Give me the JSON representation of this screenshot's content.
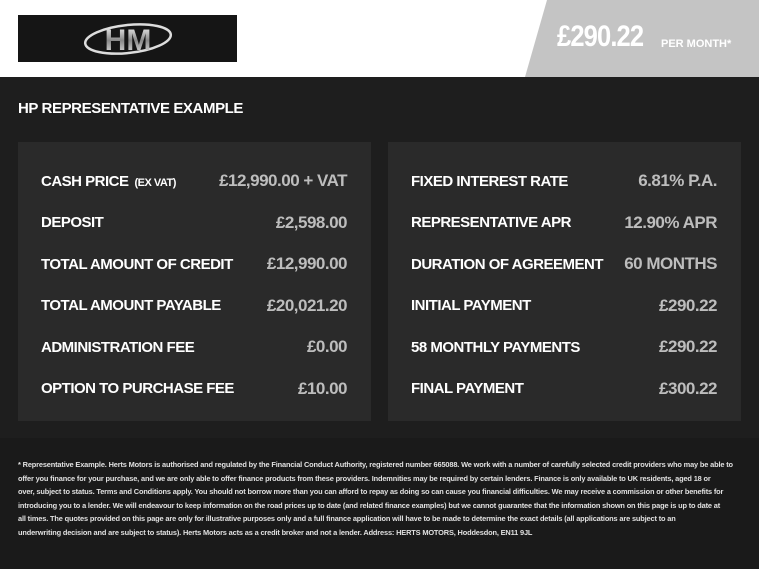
{
  "header": {
    "logo_text": "HM",
    "price": "£290.22",
    "per_month": "PER MONTH*"
  },
  "title": "HP REPRESENTATIVE EXAMPLE",
  "left": [
    {
      "label": "CASH PRICE",
      "sub": "(EX VAT)",
      "value": "£12,990.00 + VAT"
    },
    {
      "label": "DEPOSIT",
      "value": "£2,598.00"
    },
    {
      "label": "TOTAL AMOUNT OF CREDIT",
      "value": "£12,990.00"
    },
    {
      "label": "TOTAL AMOUNT PAYABLE",
      "value": "£20,021.20"
    },
    {
      "label": "ADMINISTRATION FEE",
      "value": "£0.00"
    },
    {
      "label": "OPTION TO PURCHASE FEE",
      "value": "£10.00"
    }
  ],
  "right": [
    {
      "label": "FIXED INTEREST RATE",
      "value": "6.81% P.A."
    },
    {
      "label": "REPRESENTATIVE APR",
      "value": "12.90% APR"
    },
    {
      "label": "DURATION OF AGREEMENT",
      "value": "60 MONTHS"
    },
    {
      "label": "INITIAL PAYMENT",
      "value": "£290.22"
    },
    {
      "label": "58 MONTHLY PAYMENTS",
      "value": "£290.22"
    },
    {
      "label": "FINAL PAYMENT",
      "value": "£300.22"
    }
  ],
  "disclaimer": [
    "* Representative Example. Herts Motors is authorised and regulated by the Financial Conduct Authority, registered number 665088. We work with a number of carefully selected credit providers who may be able to",
    "offer you finance for your purchase, and we are only able to offer finance products from these providers. Indemnities may be required by certain lenders. Finance is only available to UK residents, aged 18 or",
    "over, subject to status. Terms and Conditions apply. You should not borrow more than you can afford to repay as doing so can cause you financial difficulties. We may receive a commission or other benefits for",
    "introducing you to a lender. We will endeavour to keep information on the road prices up to date (and related finance examples) but we cannot guarantee that the information shown on this page is up to date at",
    "all times. The quotes provided on this page are only for illustrative purposes only and a full finance application will have to be made to determine the exact details (all applications are subject to an",
    "underwriting decision and are subject to status). Herts Motors acts as a credit broker and not a lender. Address: HERTS MOTORS, Hoddesdon, EN11 9JL"
  ]
}
